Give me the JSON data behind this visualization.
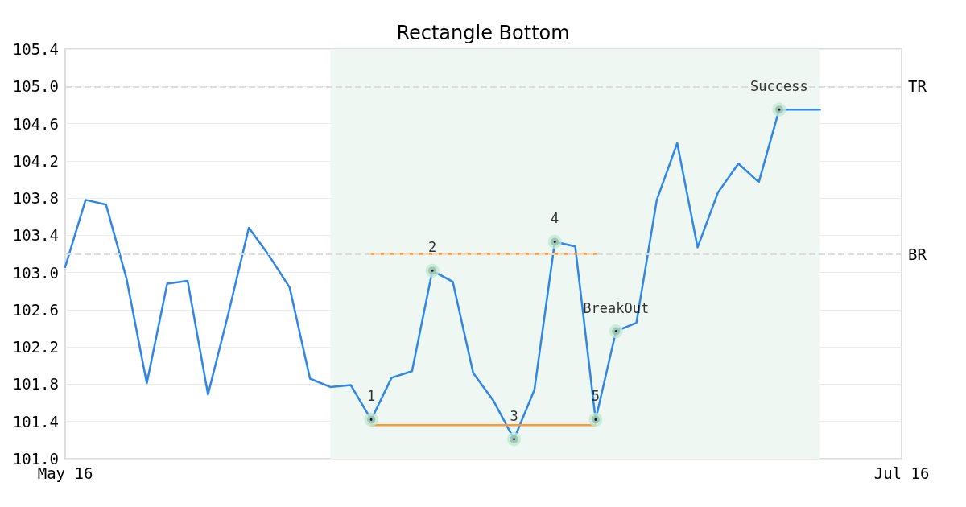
{
  "chart_data": {
    "type": "line",
    "title": "Rectangle Bottom",
    "categories": [
      "May 16",
      null,
      null,
      null,
      null,
      null,
      null,
      null,
      null,
      null,
      null,
      null,
      null,
      null,
      null,
      null,
      null,
      null,
      null,
      null,
      null,
      null,
      null,
      null,
      null,
      null,
      null,
      null,
      null,
      null,
      null,
      null,
      null,
      null,
      null,
      null,
      null,
      null,
      null,
      null,
      null,
      "Jul 16"
    ],
    "series": [
      {
        "color": "#2e86e8",
        "values": [
          103.06,
          103.78,
          103.73,
          102.94,
          101.81,
          102.88,
          102.91,
          101.69,
          102.56,
          103.48,
          103.18,
          102.84,
          101.86,
          101.77,
          101.79,
          101.42,
          101.87,
          101.94,
          103.02,
          102.9,
          101.92,
          101.62,
          101.21,
          101.74,
          103.33,
          103.28,
          101.42,
          102.37,
          102.46,
          103.78,
          104.39,
          103.27,
          103.86,
          104.17,
          103.97,
          104.75,
          104.75,
          104.75,
          null,
          null,
          null,
          null
        ]
      },
      {
        "color": "#ff9933",
        "values": [
          null,
          null,
          null,
          null,
          null,
          null,
          null,
          null,
          null,
          null,
          null,
          null,
          null,
          null,
          null,
          103.2,
          103.2,
          103.2,
          103.2,
          103.2,
          103.2,
          103.2,
          103.2,
          103.2,
          103.2,
          103.2,
          103.2,
          null,
          null,
          null,
          null,
          null,
          null,
          null,
          null,
          null,
          null,
          null,
          null,
          null,
          null,
          null
        ]
      },
      {
        "color": "#ff9933",
        "values": [
          null,
          null,
          null,
          null,
          null,
          null,
          null,
          null,
          null,
          null,
          null,
          null,
          null,
          null,
          null,
          101.36,
          101.36,
          101.36,
          101.36,
          101.36,
          101.36,
          101.36,
          101.36,
          101.36,
          101.36,
          101.36,
          101.36,
          null,
          null,
          null,
          null,
          null,
          null,
          null,
          null,
          null,
          null,
          null,
          null,
          null,
          null,
          null
        ]
      },
      {
        "type": "scatter",
        "marker": "circle",
        "color": "#bfe8d4",
        "values": [
          null,
          null,
          null,
          null,
          null,
          null,
          null,
          null,
          null,
          null,
          null,
          null,
          null,
          null,
          null,
          101.42,
          null,
          null,
          103.02,
          null,
          null,
          null,
          101.21,
          null,
          103.33,
          null,
          101.42,
          102.37,
          null,
          null,
          null,
          null,
          null,
          null,
          null,
          104.75,
          null,
          null,
          null,
          null,
          null,
          null
        ]
      }
    ],
    "ylim": [
      101.0,
      105.4
    ],
    "yticks": [
      {
        "value": 101,
        "label": "101.0"
      },
      101.4,
      101.8,
      102.2,
      102.6,
      {
        "value": 103,
        "label": "103.0"
      },
      103.4,
      103.8,
      104.2,
      104.6,
      {
        "value": 105,
        "label": "105.0"
      },
      105.4
    ],
    "grid": "y",
    "marker": "none",
    "line_style": "solid",
    "ref_lines": [
      {
        "axis": "y",
        "value": 105.0,
        "label": "TR",
        "color": "#dddddd",
        "line_style": "dashed"
      },
      {
        "axis": "y",
        "value": 103.2,
        "label": "BR",
        "color": "#dddddd",
        "line_style": "dashed"
      }
    ],
    "annotations": [
      "1",
      "2",
      "3",
      "4",
      "5",
      "BreakOut",
      "Success"
    ]
  }
}
